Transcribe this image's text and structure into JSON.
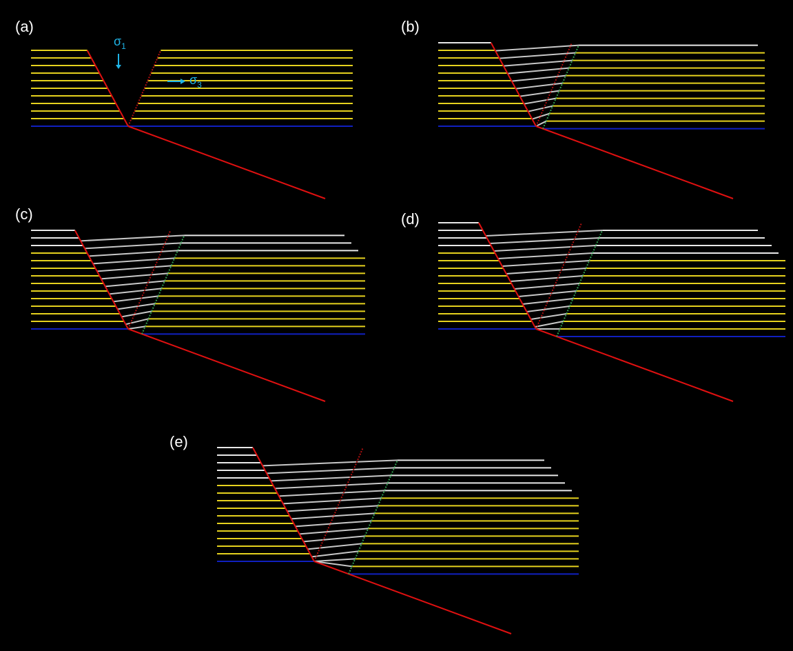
{
  "panels": [
    {
      "label": "(a)"
    },
    {
      "label": "(b)"
    },
    {
      "label": "(c)"
    },
    {
      "label": "(d)"
    },
    {
      "label": "(e)"
    }
  ],
  "stress": {
    "sigma1": {
      "symbol": "σ",
      "subscript": "1"
    },
    "sigma3": {
      "symbol": "σ",
      "subscript": "3"
    }
  }
}
